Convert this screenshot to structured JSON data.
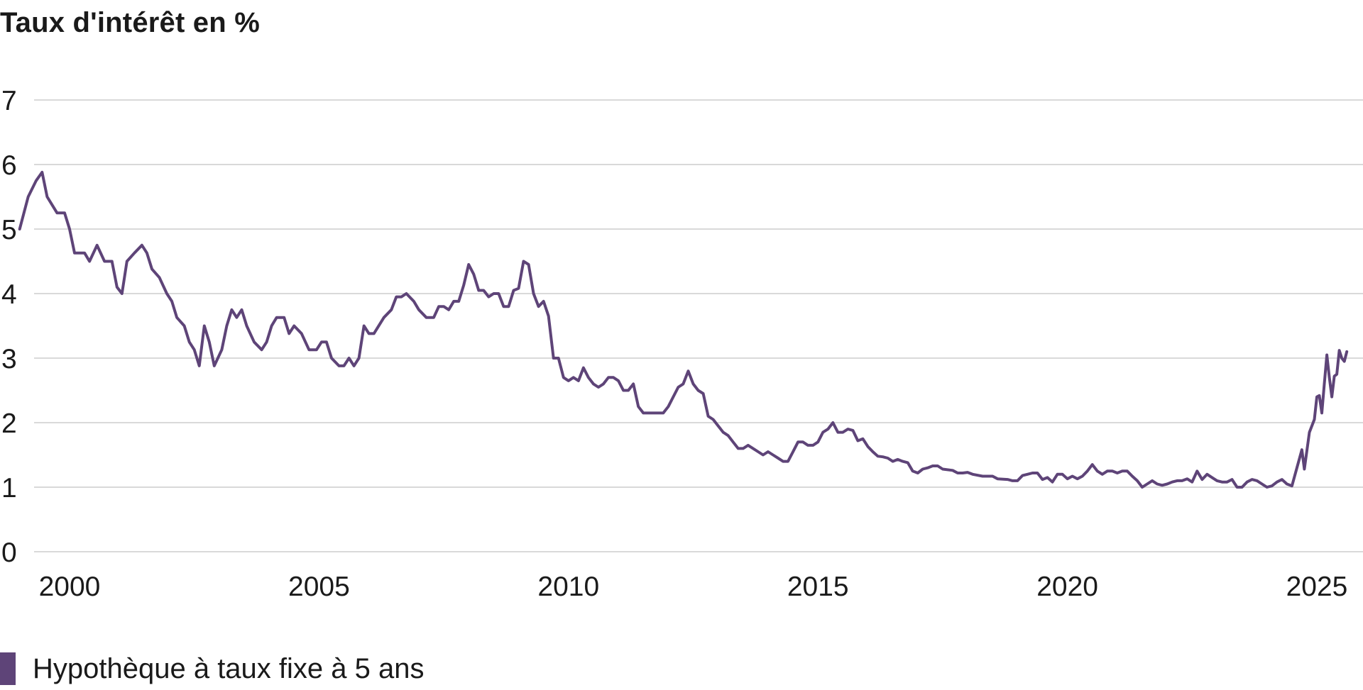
{
  "chart_data": {
    "type": "line",
    "title": "Taux d'intérêt en %",
    "xlabel": "",
    "ylabel": "",
    "xlim": [
      1999.0,
      2025.6
    ],
    "ylim": [
      0,
      7
    ],
    "yticks": [
      "0",
      "1",
      "2",
      "3",
      "4",
      "5",
      "6",
      "7"
    ],
    "xticks": [
      "2000",
      "2005",
      "2010",
      "2015",
      "2020",
      "2025"
    ],
    "grid": "horizontal",
    "legend": "bottom-left",
    "series": [
      {
        "name": "Hypothèque à taux fixe à 5 ans",
        "color": "#5e4478",
        "points": [
          [
            1999.0,
            5.0
          ],
          [
            1999.17,
            5.5
          ],
          [
            1999.33,
            5.75
          ],
          [
            1999.45,
            5.88
          ],
          [
            1999.55,
            5.5
          ],
          [
            1999.75,
            5.25
          ],
          [
            1999.9,
            5.25
          ],
          [
            2000.0,
            5.0
          ],
          [
            2000.1,
            4.63
          ],
          [
            2000.3,
            4.63
          ],
          [
            2000.4,
            4.5
          ],
          [
            2000.55,
            4.75
          ],
          [
            2000.7,
            4.5
          ],
          [
            2000.85,
            4.5
          ],
          [
            2000.95,
            4.1
          ],
          [
            2001.05,
            4.0
          ],
          [
            2001.15,
            4.5
          ],
          [
            2001.3,
            4.63
          ],
          [
            2001.45,
            4.75
          ],
          [
            2001.55,
            4.63
          ],
          [
            2001.65,
            4.38
          ],
          [
            2001.8,
            4.25
          ],
          [
            2001.95,
            4.0
          ],
          [
            2002.05,
            3.88
          ],
          [
            2002.15,
            3.63
          ],
          [
            2002.3,
            3.5
          ],
          [
            2002.4,
            3.25
          ],
          [
            2002.5,
            3.13
          ],
          [
            2002.6,
            2.88
          ],
          [
            2002.7,
            3.5
          ],
          [
            2002.8,
            3.25
          ],
          [
            2002.9,
            2.88
          ],
          [
            2003.05,
            3.13
          ],
          [
            2003.15,
            3.5
          ],
          [
            2003.25,
            3.75
          ],
          [
            2003.35,
            3.63
          ],
          [
            2003.45,
            3.75
          ],
          [
            2003.55,
            3.5
          ],
          [
            2003.7,
            3.25
          ],
          [
            2003.85,
            3.13
          ],
          [
            2003.95,
            3.25
          ],
          [
            2004.05,
            3.5
          ],
          [
            2004.15,
            3.63
          ],
          [
            2004.3,
            3.63
          ],
          [
            2004.4,
            3.38
          ],
          [
            2004.5,
            3.5
          ],
          [
            2004.65,
            3.38
          ],
          [
            2004.8,
            3.13
          ],
          [
            2004.95,
            3.13
          ],
          [
            2005.05,
            3.25
          ],
          [
            2005.15,
            3.25
          ],
          [
            2005.25,
            3.0
          ],
          [
            2005.4,
            2.88
          ],
          [
            2005.5,
            2.88
          ],
          [
            2005.6,
            3.0
          ],
          [
            2005.7,
            2.88
          ],
          [
            2005.8,
            3.0
          ],
          [
            2005.9,
            3.5
          ],
          [
            2006.0,
            3.38
          ],
          [
            2006.1,
            3.38
          ],
          [
            2006.3,
            3.63
          ],
          [
            2006.45,
            3.75
          ],
          [
            2006.55,
            3.95
          ],
          [
            2006.65,
            3.95
          ],
          [
            2006.75,
            4.0
          ],
          [
            2006.9,
            3.88
          ],
          [
            2007.0,
            3.75
          ],
          [
            2007.15,
            3.63
          ],
          [
            2007.3,
            3.63
          ],
          [
            2007.4,
            3.8
          ],
          [
            2007.5,
            3.8
          ],
          [
            2007.6,
            3.75
          ],
          [
            2007.7,
            3.88
          ],
          [
            2007.8,
            3.88
          ],
          [
            2007.9,
            4.13
          ],
          [
            2008.0,
            4.45
          ],
          [
            2008.1,
            4.3
          ],
          [
            2008.2,
            4.05
          ],
          [
            2008.3,
            4.05
          ],
          [
            2008.4,
            3.95
          ],
          [
            2008.5,
            4.0
          ],
          [
            2008.6,
            4.0
          ],
          [
            2008.7,
            3.8
          ],
          [
            2008.8,
            3.8
          ],
          [
            2008.9,
            4.05
          ],
          [
            2009.0,
            4.08
          ],
          [
            2009.1,
            4.5
          ],
          [
            2009.2,
            4.45
          ],
          [
            2009.3,
            4.0
          ],
          [
            2009.4,
            3.8
          ],
          [
            2009.5,
            3.88
          ],
          [
            2009.6,
            3.65
          ],
          [
            2009.7,
            3.0
          ],
          [
            2009.8,
            3.0
          ],
          [
            2009.9,
            2.7
          ],
          [
            2010.0,
            2.65
          ],
          [
            2010.1,
            2.7
          ],
          [
            2010.2,
            2.65
          ],
          [
            2010.3,
            2.85
          ],
          [
            2010.4,
            2.7
          ],
          [
            2010.5,
            2.6
          ],
          [
            2010.6,
            2.55
          ],
          [
            2010.7,
            2.6
          ],
          [
            2010.8,
            2.7
          ],
          [
            2010.9,
            2.7
          ],
          [
            2011.0,
            2.65
          ],
          [
            2011.1,
            2.5
          ],
          [
            2011.2,
            2.5
          ],
          [
            2011.3,
            2.6
          ],
          [
            2011.4,
            2.25
          ],
          [
            2011.5,
            2.15
          ],
          [
            2011.6,
            2.15
          ],
          [
            2011.75,
            2.15
          ],
          [
            2011.9,
            2.15
          ],
          [
            2012.0,
            2.25
          ],
          [
            2012.1,
            2.4
          ],
          [
            2012.2,
            2.55
          ],
          [
            2012.3,
            2.6
          ],
          [
            2012.4,
            2.8
          ],
          [
            2012.5,
            2.6
          ],
          [
            2012.6,
            2.5
          ],
          [
            2012.7,
            2.45
          ],
          [
            2012.8,
            2.1
          ],
          [
            2012.9,
            2.05
          ],
          [
            2013.0,
            1.95
          ],
          [
            2013.1,
            1.85
          ],
          [
            2013.2,
            1.8
          ],
          [
            2013.3,
            1.7
          ],
          [
            2013.4,
            1.6
          ],
          [
            2013.5,
            1.6
          ],
          [
            2013.6,
            1.65
          ],
          [
            2013.7,
            1.6
          ],
          [
            2013.8,
            1.55
          ],
          [
            2013.9,
            1.5
          ],
          [
            2014.0,
            1.55
          ],
          [
            2014.1,
            1.5
          ],
          [
            2014.2,
            1.45
          ],
          [
            2014.3,
            1.4
          ],
          [
            2014.4,
            1.4
          ],
          [
            2014.5,
            1.55
          ],
          [
            2014.6,
            1.7
          ],
          [
            2014.7,
            1.7
          ],
          [
            2014.8,
            1.65
          ],
          [
            2014.9,
            1.65
          ],
          [
            2015.0,
            1.7
          ],
          [
            2015.1,
            1.85
          ],
          [
            2015.2,
            1.9
          ],
          [
            2015.3,
            2.0
          ],
          [
            2015.4,
            1.85
          ],
          [
            2015.5,
            1.85
          ],
          [
            2015.6,
            1.9
          ],
          [
            2015.7,
            1.88
          ],
          [
            2015.8,
            1.72
          ],
          [
            2015.9,
            1.75
          ],
          [
            2016.0,
            1.63
          ],
          [
            2016.1,
            1.55
          ],
          [
            2016.2,
            1.48
          ],
          [
            2016.3,
            1.47
          ],
          [
            2016.4,
            1.45
          ],
          [
            2016.5,
            1.4
          ],
          [
            2016.6,
            1.43
          ],
          [
            2016.7,
            1.4
          ],
          [
            2016.8,
            1.38
          ],
          [
            2016.9,
            1.25
          ],
          [
            2017.0,
            1.22
          ],
          [
            2017.1,
            1.28
          ],
          [
            2017.2,
            1.3
          ],
          [
            2017.3,
            1.33
          ],
          [
            2017.4,
            1.33
          ],
          [
            2017.5,
            1.28
          ],
          [
            2017.7,
            1.26
          ],
          [
            2017.8,
            1.22
          ],
          [
            2017.9,
            1.22
          ],
          [
            2018.0,
            1.23
          ],
          [
            2018.1,
            1.2
          ],
          [
            2018.3,
            1.17
          ],
          [
            2018.5,
            1.17
          ],
          [
            2018.6,
            1.13
          ],
          [
            2018.8,
            1.12
          ],
          [
            2018.9,
            1.1
          ],
          [
            2019.0,
            1.1
          ],
          [
            2019.1,
            1.18
          ],
          [
            2019.2,
            1.2
          ],
          [
            2019.3,
            1.22
          ],
          [
            2019.4,
            1.22
          ],
          [
            2019.5,
            1.12
          ],
          [
            2019.6,
            1.15
          ],
          [
            2019.7,
            1.08
          ],
          [
            2019.8,
            1.2
          ],
          [
            2019.9,
            1.2
          ],
          [
            2020.0,
            1.13
          ],
          [
            2020.1,
            1.17
          ],
          [
            2020.2,
            1.13
          ],
          [
            2020.3,
            1.17
          ],
          [
            2020.4,
            1.25
          ],
          [
            2020.5,
            1.35
          ],
          [
            2020.6,
            1.25
          ],
          [
            2020.7,
            1.2
          ],
          [
            2020.8,
            1.25
          ],
          [
            2020.9,
            1.25
          ],
          [
            2021.0,
            1.22
          ],
          [
            2021.1,
            1.25
          ],
          [
            2021.2,
            1.25
          ],
          [
            2021.3,
            1.17
          ],
          [
            2021.4,
            1.1
          ],
          [
            2021.5,
            1.0
          ],
          [
            2021.6,
            1.05
          ],
          [
            2021.7,
            1.1
          ],
          [
            2021.8,
            1.05
          ],
          [
            2021.9,
            1.03
          ],
          [
            2022.0,
            1.05
          ],
          [
            2022.1,
            1.08
          ],
          [
            2022.2,
            1.1
          ],
          [
            2022.3,
            1.1
          ],
          [
            2022.4,
            1.13
          ],
          [
            2022.5,
            1.08
          ],
          [
            2022.6,
            1.25
          ],
          [
            2022.7,
            1.12
          ],
          [
            2022.8,
            1.2
          ],
          [
            2022.9,
            1.15
          ],
          [
            2023.0,
            1.1
          ],
          [
            2023.1,
            1.08
          ],
          [
            2023.2,
            1.08
          ],
          [
            2023.3,
            1.12
          ],
          [
            2023.4,
            1.0
          ],
          [
            2023.5,
            1.0
          ],
          [
            2023.6,
            1.08
          ],
          [
            2023.7,
            1.12
          ],
          [
            2023.8,
            1.1
          ],
          [
            2023.9,
            1.05
          ],
          [
            2024.0,
            1.0
          ],
          [
            2024.1,
            1.02
          ],
          [
            2024.2,
            1.08
          ],
          [
            2024.3,
            1.12
          ],
          [
            2024.4,
            1.05
          ],
          [
            2024.5,
            1.02
          ],
          [
            2024.6,
            1.3
          ],
          [
            2024.7,
            1.58
          ],
          [
            2024.75,
            1.28
          ],
          [
            2024.85,
            1.85
          ],
          [
            2024.95,
            2.05
          ],
          [
            2025.0,
            2.4
          ],
          [
            2025.05,
            2.42
          ],
          [
            2025.1,
            2.15
          ],
          [
            2025.15,
            2.6
          ],
          [
            2025.2,
            3.05
          ],
          [
            2025.25,
            2.7
          ],
          [
            2025.3,
            2.4
          ],
          [
            2025.35,
            2.72
          ],
          [
            2025.4,
            2.75
          ],
          [
            2025.45,
            3.12
          ],
          [
            2025.5,
            3.0
          ],
          [
            2025.55,
            2.95
          ],
          [
            2025.6,
            3.1
          ]
        ]
      }
    ]
  }
}
